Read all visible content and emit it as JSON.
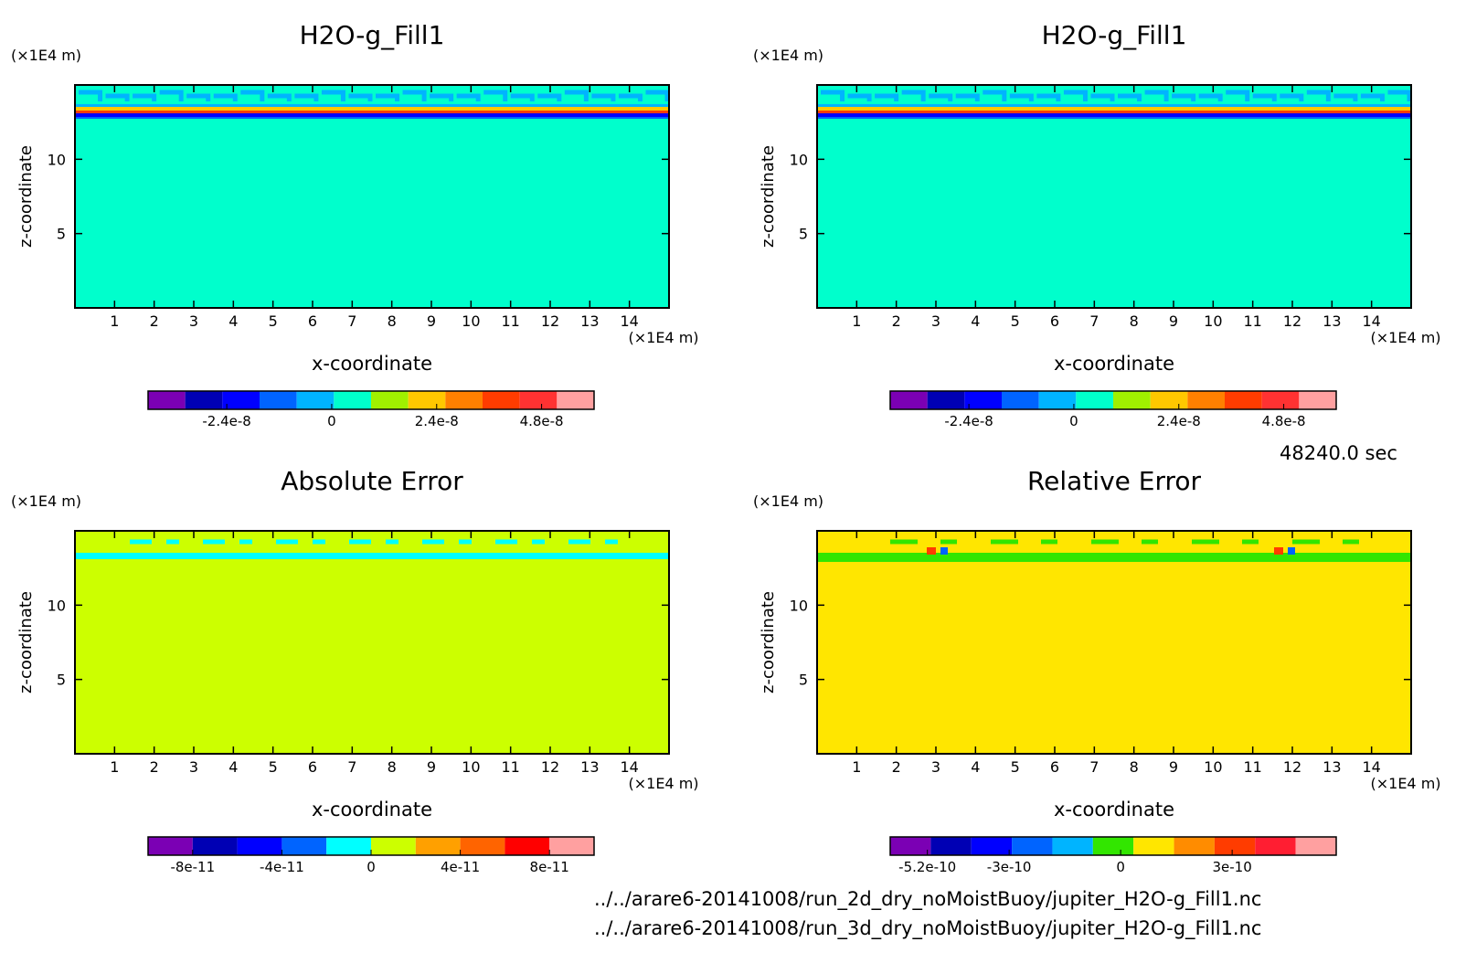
{
  "time_label": "48240.0 sec",
  "files": [
    "../../arare6-20141008/run_2d_dry_noMoistBuoy/jupiter_H2O-g_Fill1.nc",
    "../../arare6-20141008/run_3d_dry_noMoistBuoy/jupiter_H2O-g_Fill1.nc"
  ],
  "chart_data": [
    {
      "type": "heatmap",
      "title": "H2O-g_Fill1",
      "xlabel": "x-coordinate",
      "ylabel": "z-coordinate",
      "x_unit": "(×1E4 m)",
      "y_unit": "(×1E4 m)",
      "xlim": [
        0,
        15
      ],
      "ylim": [
        0,
        15
      ],
      "x_ticks": [
        1,
        2,
        3,
        4,
        5,
        6,
        7,
        8,
        9,
        10,
        11,
        12,
        13,
        14
      ],
      "y_ticks": [
        5,
        10
      ],
      "background_color": "#00ffcc",
      "colorbar": {
        "colors": [
          "#7b00b4",
          "#0000b4",
          "#0000ff",
          "#0064ff",
          "#00b4ff",
          "#00ffcc",
          "#a0f000",
          "#ffc800",
          "#ff8000",
          "#ff3c00",
          "#ff3232",
          "#ffa0a0"
        ],
        "tick_labels": [
          "-2.4e-8",
          "0",
          "2.4e-8",
          "4.8e-8"
        ],
        "tick_values": [
          -2.4e-08,
          0,
          2.4e-08,
          4.8e-08
        ],
        "vmin": -4.2e-08,
        "vmax": 6e-08
      }
    },
    {
      "type": "heatmap",
      "title": "H2O-g_Fill1",
      "xlabel": "x-coordinate",
      "ylabel": "z-coordinate",
      "x_unit": "(×1E4 m)",
      "y_unit": "(×1E4 m)",
      "xlim": [
        0,
        15
      ],
      "ylim": [
        0,
        15
      ],
      "x_ticks": [
        1,
        2,
        3,
        4,
        5,
        6,
        7,
        8,
        9,
        10,
        11,
        12,
        13,
        14
      ],
      "y_ticks": [
        5,
        10
      ],
      "background_color": "#00ffcc",
      "colorbar": {
        "colors": [
          "#7b00b4",
          "#0000b4",
          "#0000ff",
          "#0064ff",
          "#00b4ff",
          "#00ffcc",
          "#a0f000",
          "#ffc800",
          "#ff8000",
          "#ff3c00",
          "#ff3232",
          "#ffa0a0"
        ],
        "tick_labels": [
          "-2.4e-8",
          "0",
          "2.4e-8",
          "4.8e-8"
        ],
        "tick_values": [
          -2.4e-08,
          0,
          2.4e-08,
          4.8e-08
        ],
        "vmin": -4.2e-08,
        "vmax": 6e-08
      }
    },
    {
      "type": "heatmap",
      "title": "Absolute Error",
      "xlabel": "x-coordinate",
      "ylabel": "z-coordinate",
      "x_unit": "(×1E4 m)",
      "y_unit": "(×1E4 m)",
      "xlim": [
        0,
        15
      ],
      "ylim": [
        0,
        15
      ],
      "x_ticks": [
        1,
        2,
        3,
        4,
        5,
        6,
        7,
        8,
        9,
        10,
        11,
        12,
        13,
        14
      ],
      "y_ticks": [
        5,
        10
      ],
      "background_color": "#ccff00",
      "colorbar": {
        "colors": [
          "#7b00b4",
          "#0000b4",
          "#0000ff",
          "#0064ff",
          "#00ffff",
          "#ccff00",
          "#ffa000",
          "#ff6400",
          "#ff0000",
          "#ffa0a0"
        ],
        "tick_labels": [
          "-8e-11",
          "-4e-11",
          "0",
          "4e-11",
          "8e-11"
        ],
        "tick_values": [
          -8e-11,
          -4e-11,
          0,
          4e-11,
          8e-11
        ],
        "vmin": -1e-10,
        "vmax": 1e-10
      }
    },
    {
      "type": "heatmap",
      "title": "Relative Error",
      "xlabel": "x-coordinate",
      "ylabel": "z-coordinate",
      "x_unit": "(×1E4 m)",
      "y_unit": "(×1E4 m)",
      "xlim": [
        0,
        15
      ],
      "ylim": [
        0,
        15
      ],
      "x_ticks": [
        1,
        2,
        3,
        4,
        5,
        6,
        7,
        8,
        9,
        10,
        11,
        12,
        13,
        14
      ],
      "y_ticks": [
        5,
        10
      ],
      "background_color": "#ffe600",
      "colorbar": {
        "colors": [
          "#7b00b4",
          "#0000b4",
          "#0000ff",
          "#0064ff",
          "#00b4ff",
          "#32e600",
          "#ffe600",
          "#ff8c00",
          "#ff3c00",
          "#ff1e32",
          "#ffa0a0"
        ],
        "tick_labels": [
          "-5.2e-10",
          "-3e-10",
          "0",
          "3e-10"
        ],
        "tick_values": [
          -5.2e-10,
          -3e-10,
          0,
          3e-10
        ],
        "vmin": -6.2e-10,
        "vmax": 5.8e-10
      }
    }
  ]
}
